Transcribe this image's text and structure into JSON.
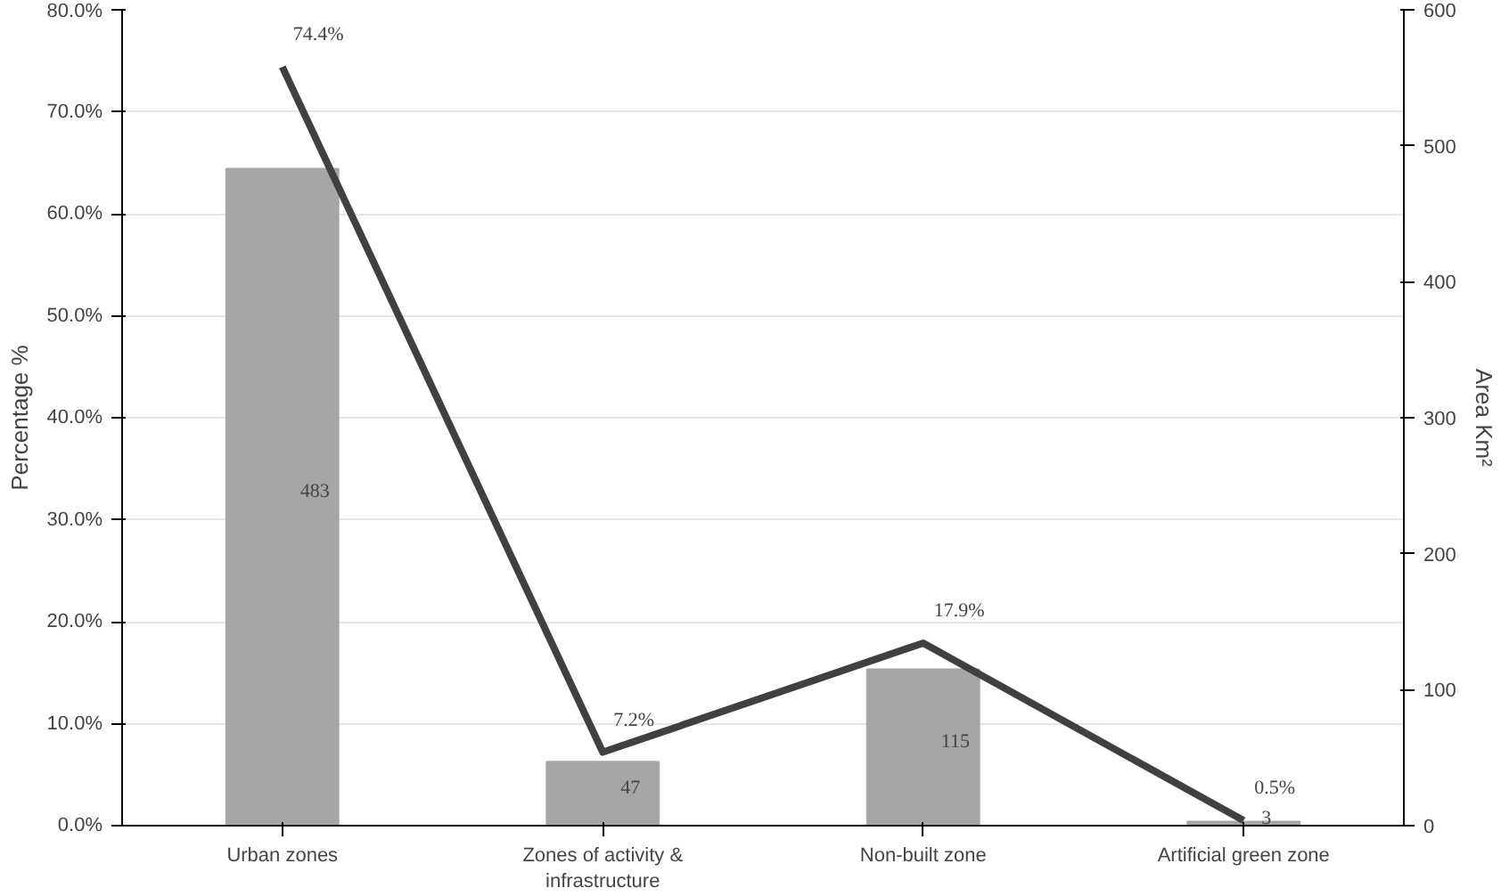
{
  "chart_data": {
    "type": "bar",
    "ylabel": "Percentage %",
    "y2label": "Area Km²",
    "categories": [
      "Urban zones",
      "Zones of activity & infrastructure",
      "Non-built zone",
      "Artificial green zone"
    ],
    "series": [
      {
        "axis": "y2",
        "color": "#a6a6a6",
        "values": [
          483,
          47,
          115,
          3
        ],
        "data_labels": true
      },
      {
        "type": "line",
        "axis": "y",
        "color": "#404040",
        "values": [
          74.4,
          7.2,
          17.9,
          0.5
        ],
        "value_labels": [
          "74.4%",
          "7.2%",
          "17.9%",
          "0.5%"
        ],
        "line_style": "solid",
        "marker": "none"
      }
    ],
    "ylim": [
      0,
      80
    ],
    "yticks": [
      {
        "value": 0,
        "label": "0.0%"
      },
      {
        "value": 10,
        "label": "10.0%"
      },
      {
        "value": 20,
        "label": "20.0%"
      },
      {
        "value": 30,
        "label": "30.0%"
      },
      {
        "value": 40,
        "label": "40.0%"
      },
      {
        "value": 50,
        "label": "50.0%"
      },
      {
        "value": 60,
        "label": "60.0%"
      },
      {
        "value": 70,
        "label": "70.0%"
      },
      {
        "value": 80,
        "label": "80.0%"
      }
    ],
    "y2lim": [
      0,
      600
    ],
    "y2ticks": [
      0,
      100,
      200,
      300,
      400,
      500,
      600
    ],
    "grid": "y"
  }
}
